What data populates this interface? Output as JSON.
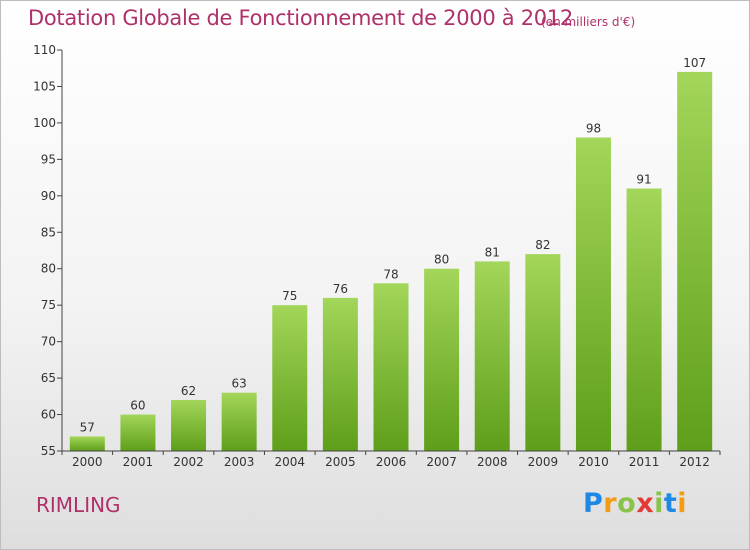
{
  "header": {
    "title": "Dotation Globale de Fonctionnement de 2000 à 2012",
    "unit": "(en milliers d'€)"
  },
  "footer": {
    "commune": "RIMLING",
    "brand_letters": [
      "P",
      "r",
      "o",
      "x",
      "i",
      "t",
      "i"
    ],
    "brand_colors": [
      "#1e88e5",
      "#f39c12",
      "#8bc34a",
      "#e53935",
      "#8bc34a",
      "#1e88e5",
      "#f39c12"
    ]
  },
  "colors": {
    "bar_top": "#a3d65a",
    "bar_bottom": "#5e9e1a",
    "axis": "#444444",
    "text": "#333333",
    "accent": "#b0306a"
  },
  "chart_data": {
    "type": "bar",
    "title": "Dotation Globale de Fonctionnement de 2000 à 2012",
    "subtitle": "(en milliers d'€)",
    "categories": [
      "2000",
      "2001",
      "2002",
      "2003",
      "2004",
      "2005",
      "2006",
      "2007",
      "2008",
      "2009",
      "2010",
      "2011",
      "2012"
    ],
    "values": [
      57,
      60,
      62,
      63,
      75,
      76,
      78,
      80,
      81,
      82,
      98,
      91,
      107
    ],
    "ylim": [
      55,
      110
    ],
    "yticks": [
      55,
      60,
      65,
      70,
      75,
      80,
      85,
      90,
      95,
      100,
      105,
      110
    ],
    "xlabel": "",
    "ylabel": "",
    "grid": false,
    "data_labels": true
  }
}
